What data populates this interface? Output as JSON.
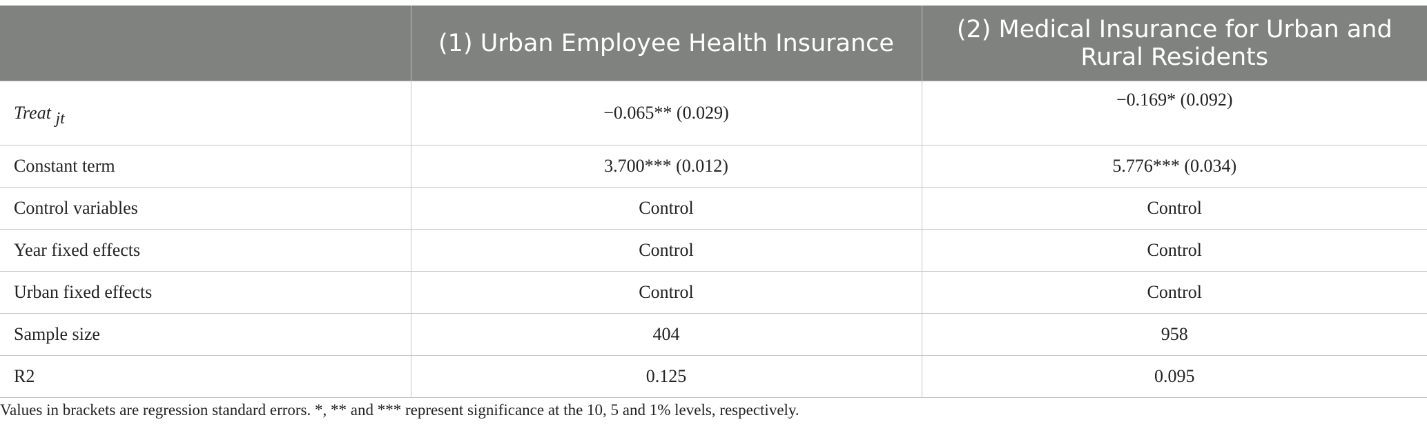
{
  "table": {
    "headers": [
      "",
      "(1) Urban Employee Health Insurance",
      "(2) Medical Insurance for Urban and Rural Residents"
    ],
    "treat_row": {
      "label": "Treat",
      "subscript": "jt",
      "col1": "−0.065** (0.029)",
      "col2": "−0.169* (0.092)"
    },
    "rows": [
      {
        "label": "Constant term",
        "col1": "3.700*** (0.012)",
        "col2": "5.776*** (0.034)"
      },
      {
        "label": "Control variables",
        "col1": "Control",
        "col2": "Control"
      },
      {
        "label": "Year fixed effects",
        "col1": "Control",
        "col2": "Control"
      },
      {
        "label": "Urban fixed effects",
        "col1": "Control",
        "col2": "Control"
      },
      {
        "label": "Sample size",
        "col1": "404",
        "col2": "958"
      },
      {
        "label": "R2",
        "col1": "0.125",
        "col2": "0.095"
      }
    ]
  },
  "footnote": "Values in brackets are regression standard errors. *, ** and *** represent significance at the 10, 5 and 1% levels, respectively."
}
